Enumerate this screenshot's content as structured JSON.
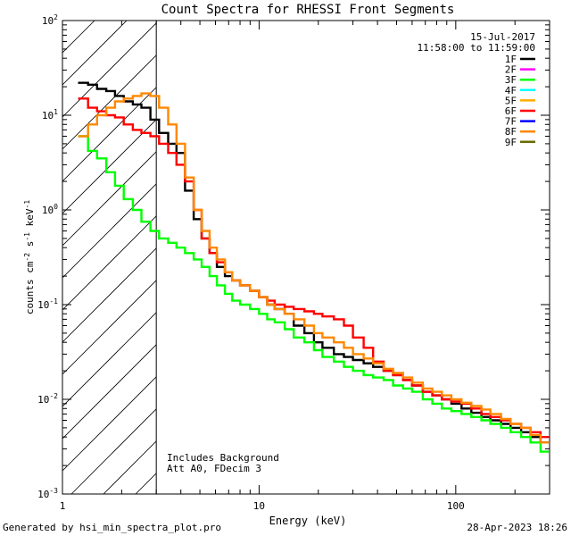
{
  "chart_data": {
    "type": "line",
    "title": "Count Spectra for RHESSI Front Segments",
    "xlabel": "Energy (keV)",
    "ylabel_base": "counts cm",
    "ylabel_exp1": "-2",
    "ylabel_mid": " s",
    "ylabel_exp2": "-1",
    "ylabel_end": " keV",
    "ylabel_exp3": "-1",
    "xscale": "log",
    "yscale": "log",
    "xlim": [
      1,
      300
    ],
    "ylim": [
      0.001,
      100
    ],
    "x_ticks": [
      {
        "v": 1,
        "label": "1"
      },
      {
        "v": 10,
        "label": "10"
      },
      {
        "v": 100,
        "label": "100"
      }
    ],
    "y_ticks": [
      {
        "v": 100,
        "base": "10",
        "exp": "2"
      },
      {
        "v": 10,
        "base": "10",
        "exp": "1"
      },
      {
        "v": 1,
        "base": "10",
        "exp": "0"
      },
      {
        "v": 0.1,
        "base": "10",
        "exp": "-1"
      },
      {
        "v": 0.01,
        "base": "10",
        "exp": "-2"
      },
      {
        "v": 0.001,
        "base": "10",
        "exp": "-3"
      }
    ],
    "attenuator_threshold_kev": 3,
    "date": "15-Jul-2017",
    "time_range": "11:58:00 to 11:59:00",
    "annotations": [
      "Includes Background",
      "Att A0, FDecim 3"
    ],
    "legend_position": "top-right",
    "legend": [
      {
        "name": "1F",
        "color": "#000000"
      },
      {
        "name": "2F",
        "color": "#ff00ff"
      },
      {
        "name": "3F",
        "color": "#00ff00"
      },
      {
        "name": "4F",
        "color": "#00ffff"
      },
      {
        "name": "5F",
        "color": "#ffaa00"
      },
      {
        "name": "6F",
        "color": "#ff0000"
      },
      {
        "name": "7F",
        "color": "#0000ff"
      },
      {
        "name": "8F",
        "color": "#ff8800"
      },
      {
        "name": "9F",
        "color": "#6b6b00"
      }
    ],
    "series": [
      {
        "name": "1F",
        "color": "#000000",
        "x": [
          1.2,
          1.35,
          1.5,
          1.67,
          1.85,
          2.05,
          2.28,
          2.52,
          2.8,
          3.1,
          3.45,
          3.8,
          4.2,
          4.65,
          5.1,
          5.6,
          6.1,
          6.7,
          7.3,
          8,
          9,
          10,
          11,
          12,
          13.5,
          15,
          17,
          19,
          21,
          24,
          27,
          30,
          34,
          38,
          43,
          48,
          54,
          60,
          68,
          76,
          85,
          95,
          107,
          120,
          135,
          150,
          170,
          190,
          215,
          240,
          270
        ],
        "y": [
          22,
          21,
          19,
          18,
          16,
          14,
          13,
          12,
          9,
          6.5,
          5,
          4,
          1.6,
          0.8,
          0.5,
          0.35,
          0.25,
          0.2,
          0.18,
          0.16,
          0.14,
          0.12,
          0.1,
          0.09,
          0.08,
          0.06,
          0.05,
          0.04,
          0.035,
          0.03,
          0.028,
          0.026,
          0.024,
          0.022,
          0.02,
          0.018,
          0.016,
          0.014,
          0.012,
          0.011,
          0.01,
          0.009,
          0.008,
          0.0072,
          0.0065,
          0.006,
          0.0055,
          0.005,
          0.0045,
          0.004,
          0.0035
        ]
      },
      {
        "name": "3F",
        "color": "#00ff00",
        "x": [
          1.2,
          1.35,
          1.5,
          1.67,
          1.85,
          2.05,
          2.28,
          2.52,
          2.8,
          3.1,
          3.45,
          3.8,
          4.2,
          4.65,
          5.1,
          5.6,
          6.1,
          6.7,
          7.3,
          8,
          9,
          10,
          11,
          12,
          13.5,
          15,
          17,
          19,
          21,
          24,
          27,
          30,
          34,
          38,
          43,
          48,
          54,
          60,
          68,
          76,
          85,
          95,
          107,
          120,
          135,
          150,
          170,
          190,
          215,
          240,
          270
        ],
        "y": [
          6,
          4.2,
          3.5,
          2.5,
          1.8,
          1.3,
          1,
          0.75,
          0.6,
          0.5,
          0.45,
          0.4,
          0.35,
          0.3,
          0.25,
          0.2,
          0.16,
          0.13,
          0.11,
          0.1,
          0.09,
          0.08,
          0.07,
          0.065,
          0.055,
          0.045,
          0.04,
          0.033,
          0.028,
          0.025,
          0.022,
          0.02,
          0.018,
          0.017,
          0.016,
          0.014,
          0.013,
          0.012,
          0.01,
          0.009,
          0.008,
          0.0075,
          0.007,
          0.0065,
          0.006,
          0.0055,
          0.005,
          0.0045,
          0.004,
          0.0035,
          0.0028
        ]
      },
      {
        "name": "6F",
        "color": "#ff0000",
        "x": [
          1.2,
          1.35,
          1.5,
          1.67,
          1.85,
          2.05,
          2.28,
          2.52,
          2.8,
          3.1,
          3.45,
          3.8,
          4.2,
          4.65,
          5.1,
          5.6,
          6.1,
          6.7,
          7.3,
          8,
          9,
          10,
          11,
          12,
          13.5,
          15,
          17,
          19,
          21,
          24,
          27,
          30,
          34,
          38,
          43,
          48,
          54,
          60,
          68,
          76,
          85,
          95,
          107,
          120,
          135,
          150,
          170,
          190,
          215,
          240,
          270
        ],
        "y": [
          15,
          12,
          11,
          10,
          9.5,
          8,
          7,
          6.5,
          6,
          5,
          4,
          3,
          2,
          1,
          0.5,
          0.35,
          0.28,
          0.22,
          0.18,
          0.16,
          0.14,
          0.12,
          0.11,
          0.1,
          0.095,
          0.09,
          0.085,
          0.08,
          0.075,
          0.07,
          0.06,
          0.045,
          0.035,
          0.025,
          0.02,
          0.018,
          0.016,
          0.014,
          0.012,
          0.011,
          0.01,
          0.0095,
          0.009,
          0.008,
          0.007,
          0.0065,
          0.006,
          0.0055,
          0.005,
          0.0045,
          0.004
        ]
      },
      {
        "name": "8F",
        "color": "#ff8800",
        "x": [
          1.2,
          1.35,
          1.5,
          1.67,
          1.85,
          2.05,
          2.28,
          2.52,
          2.8,
          3.1,
          3.45,
          3.8,
          4.2,
          4.65,
          5.1,
          5.6,
          6.1,
          6.7,
          7.3,
          8,
          9,
          10,
          11,
          12,
          13.5,
          15,
          17,
          19,
          21,
          24,
          27,
          30,
          34,
          38,
          43,
          48,
          54,
          60,
          68,
          76,
          85,
          95,
          107,
          120,
          135,
          150,
          170,
          190,
          215,
          240,
          270
        ],
        "y": [
          6,
          8,
          10,
          12,
          14,
          15,
          16,
          17,
          16,
          12,
          8,
          5,
          2.2,
          1,
          0.6,
          0.4,
          0.3,
          0.22,
          0.18,
          0.16,
          0.14,
          0.12,
          0.1,
          0.09,
          0.08,
          0.07,
          0.06,
          0.05,
          0.045,
          0.04,
          0.035,
          0.03,
          0.027,
          0.024,
          0.021,
          0.019,
          0.017,
          0.015,
          0.013,
          0.012,
          0.011,
          0.01,
          0.0092,
          0.0085,
          0.0078,
          0.007,
          0.0062,
          0.0055,
          0.005,
          0.0042,
          0.0035
        ]
      }
    ]
  },
  "footer": {
    "left": "Generated by hsi_min_spectra_plot.pro",
    "right": "28-Apr-2023 18:26"
  }
}
